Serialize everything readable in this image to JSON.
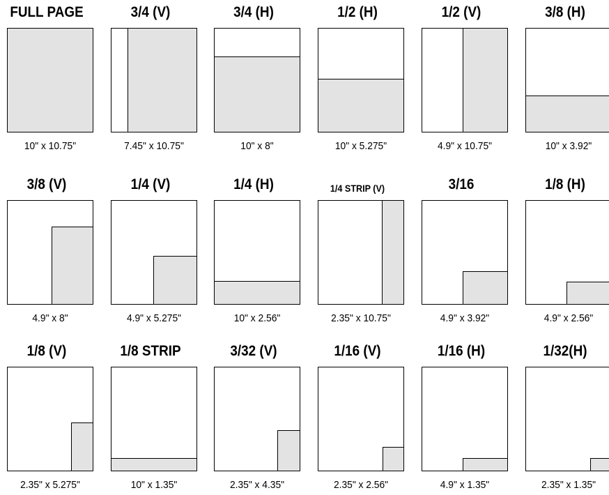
{
  "colors": {
    "shaded": "#e3e3e4",
    "border": "#000000"
  },
  "ads": [
    {
      "title": "FULL PAGE",
      "size": "10\" x 10.75\""
    },
    {
      "title": "3/4 (V)",
      "size": "7.45\" x 10.75\""
    },
    {
      "title": "3/4 (H)",
      "size": "10\" x 8\""
    },
    {
      "title": "1/2 (H)",
      "size": "10\" x 5.275\""
    },
    {
      "title": "1/2 (V)",
      "size": "4.9\" x 10.75\""
    },
    {
      "title": "3/8 (H)",
      "size": "10\" x 3.92\""
    },
    {
      "title": "3/8 (V)",
      "size": "4.9\" x 8\""
    },
    {
      "title": "1/4 (V)",
      "size": "4.9\" x 5.275\""
    },
    {
      "title": "1/4 (H)",
      "size": "10\" x 2.56\""
    },
    {
      "title": "1/4 STRIP (V)",
      "size": "2.35\" x 10.75\""
    },
    {
      "title": "3/16",
      "size": "4.9\" x 3.92\""
    },
    {
      "title": "1/8 (H)",
      "size": "4.9\" x 2.56\""
    },
    {
      "title": "1/8 (V)",
      "size": "2.35\" x 5.275\""
    },
    {
      "title": "1/8 STRIP",
      "size": "10\" x 1.35\""
    },
    {
      "title": "3/32 (V)",
      "size": "2.35\" x 4.35\""
    },
    {
      "title": "1/16 (V)",
      "size": "2.35\" x 2.56\""
    },
    {
      "title": "1/16 (H)",
      "size": "4.9\" x 1.35\""
    },
    {
      "title": "1/32(H)",
      "size": "2.35\" x 1.35\""
    }
  ]
}
